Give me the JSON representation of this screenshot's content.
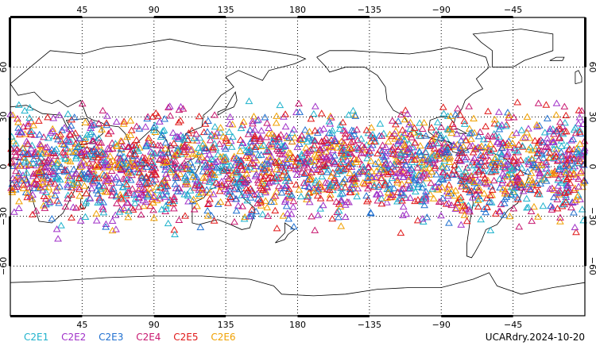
{
  "map": {
    "projection": "cylindrical equidistant",
    "lon_center": 180,
    "lon_range": [
      0,
      360
    ],
    "lat_range": [
      -90,
      90
    ],
    "grid": "dotted every 45 degrees longitude and 30 degrees latitude",
    "top_lon_labels": [
      "45",
      "90",
      "135",
      "180",
      "−135",
      "−90",
      "−45"
    ],
    "bottom_lon_labels": [
      "45",
      "90",
      "135",
      "180",
      "−135",
      "−90",
      "−45"
    ],
    "left_lat_labels": [
      "60",
      "30",
      "0",
      "−30",
      "−60"
    ],
    "right_lat_labels": [
      "60",
      "30",
      "0",
      "−30",
      "−60"
    ],
    "marker_symbol": "triangle-icon",
    "marker_lat_band": [
      -45,
      45
    ]
  },
  "legend": {
    "items": [
      {
        "label": "C2E1",
        "color": "#1fb2cc"
      },
      {
        "label": "C2E2",
        "color": "#a030c8"
      },
      {
        "label": "C2E3",
        "color": "#2070d0"
      },
      {
        "label": "C2E4",
        "color": "#c81870"
      },
      {
        "label": "C2E5",
        "color": "#e01818"
      },
      {
        "label": "C2E6",
        "color": "#f0a000"
      }
    ]
  },
  "stamp": "UCARdry.2024-10-20"
}
